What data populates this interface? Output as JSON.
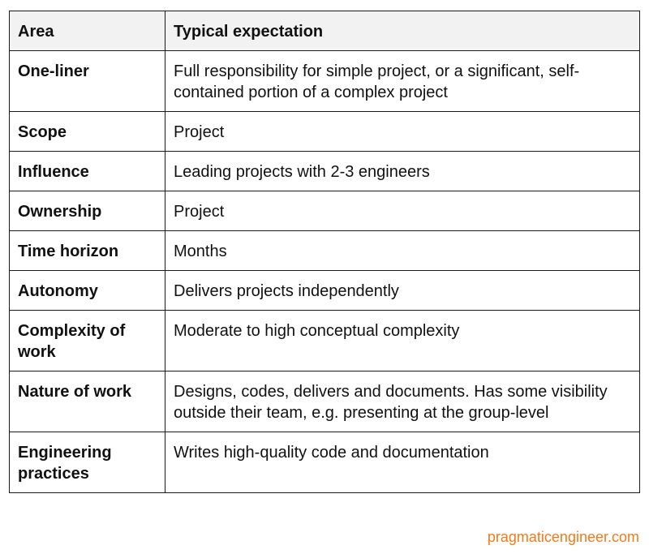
{
  "table": {
    "headers": [
      "Area",
      "Typical expectation"
    ],
    "rows": [
      {
        "area": "One-liner",
        "expectation": "Full responsibility for simple project, or a significant, self-contained portion of a complex project"
      },
      {
        "area": "Scope",
        "expectation": "Project"
      },
      {
        "area": "Influence",
        "expectation": "Leading projects with 2-3 engineers"
      },
      {
        "area": "Ownership",
        "expectation": "Project"
      },
      {
        "area": "Time horizon",
        "expectation": "Months"
      },
      {
        "area": "Autonomy",
        "expectation": "Delivers projects independently"
      },
      {
        "area": "Complexity of work",
        "expectation": "Moderate to high conceptual complexity"
      },
      {
        "area": "Nature of work",
        "expectation": "Designs, codes, delivers and documents. Has some visibility outside their team, e.g. presenting at the group-level"
      },
      {
        "area": "Engineering practices",
        "expectation": "Writes high-quality code and documentation"
      }
    ]
  },
  "watermark": {
    "text": "pragmaticengineer.com",
    "color": "#f07b1a"
  },
  "colors": {
    "header_background": "#f2f2f2",
    "border": "#1a1a1a",
    "text": "#111111"
  }
}
